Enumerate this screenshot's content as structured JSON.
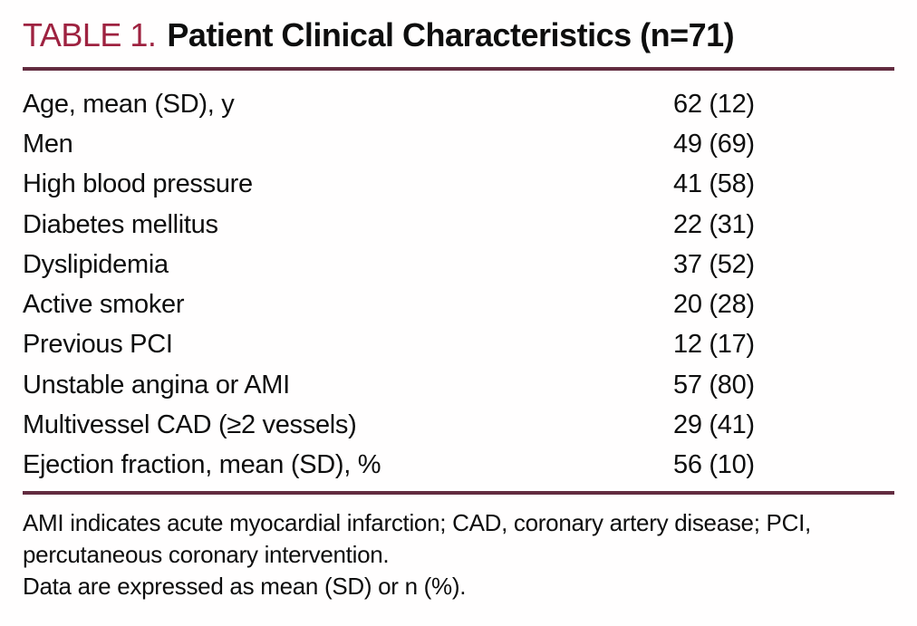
{
  "table": {
    "label": "TABLE 1.",
    "title": "Patient Clinical Characteristics (n=71)",
    "rows": [
      {
        "characteristic": "Age, mean (SD), y",
        "value": "62 (12)"
      },
      {
        "characteristic": "Men",
        "value": "49 (69)"
      },
      {
        "characteristic": "High blood pressure",
        "value": "41 (58)"
      },
      {
        "characteristic": "Diabetes mellitus",
        "value": "22 (31)"
      },
      {
        "characteristic": "Dyslipidemia",
        "value": "37 (52)"
      },
      {
        "characteristic": "Active smoker",
        "value": "20 (28)"
      },
      {
        "characteristic": "Previous PCI",
        "value": "12 (17)"
      },
      {
        "characteristic": "Unstable angina or AMI",
        "value": "57 (80)"
      },
      {
        "characteristic": "Multivessel CAD (≥2 vessels)",
        "value": "29 (41)"
      },
      {
        "characteristic": "Ejection fraction, mean (SD), %",
        "value": "56 (10)"
      }
    ],
    "footnotes": [
      "AMI indicates acute myocardial infarction; CAD, coronary artery disease; PCI, percutaneous coronary intervention.",
      "Data are expressed as mean (SD) or n (%)."
    ],
    "colors": {
      "label_red": "#9e2240",
      "rule_maroon": "#632c40",
      "text_black": "#0e0e0e"
    }
  }
}
